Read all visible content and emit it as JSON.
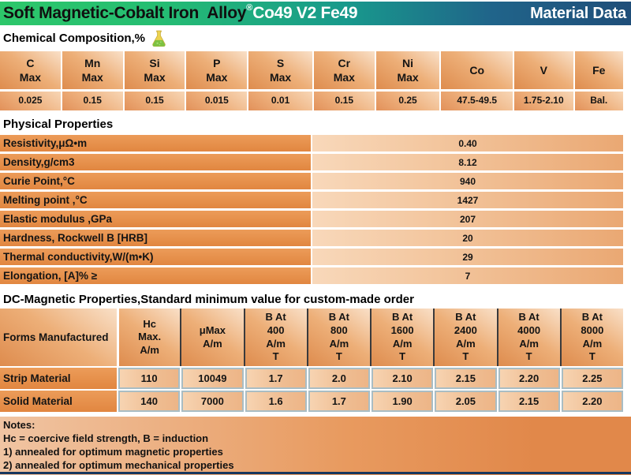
{
  "header": {
    "title_black": "Soft Magnetic-Cobalt Iron  Alloy",
    "registered_mark": "®",
    "title_white": "Co49 V2 Fe49",
    "right_label": "Material Data"
  },
  "colors": {
    "header_green": "#2dc76a",
    "header_teal": "#18998c",
    "header_navy": "#1f4e79",
    "orange_dark": "#de8c4e",
    "orange_light": "#f9e0c8",
    "cell_border_blue": "#a9bdc4",
    "bottom_line_navy": "#17365d"
  },
  "chemical": {
    "heading": "Chemical Composition,%",
    "columns": [
      {
        "lines": [
          "C",
          "Max"
        ]
      },
      {
        "lines": [
          "Mn",
          "Max"
        ]
      },
      {
        "lines": [
          "Si",
          "Max"
        ]
      },
      {
        "lines": [
          "P",
          "Max"
        ]
      },
      {
        "lines": [
          "S",
          "Max"
        ]
      },
      {
        "lines": [
          "Cr",
          "Max"
        ]
      },
      {
        "lines": [
          "Ni",
          "Max"
        ]
      },
      {
        "lines": [
          "Co"
        ]
      },
      {
        "lines": [
          "V"
        ]
      },
      {
        "lines": [
          "Fe"
        ]
      }
    ],
    "values": [
      "0.025",
      "0.15",
      "0.15",
      "0.015",
      "0.01",
      "0.15",
      "0.25",
      "47.5-49.5",
      "1.75-2.10",
      "Bal."
    ]
  },
  "physical": {
    "heading": "Physical Properties",
    "rows": [
      {
        "property": "Resistivity,μΩ•m",
        "value": "0.40"
      },
      {
        "property": "Density,g/cm3",
        "value": "8.12"
      },
      {
        "property": "Curie Point,°C",
        "value": "940"
      },
      {
        "property": "Melting point ,°C",
        "value": "1427"
      },
      {
        "property": "Elastic modulus ,GPa",
        "value": "207"
      },
      {
        "property": "Hardness, Rockwell B [HRB]",
        "value": "20"
      },
      {
        "property": "Thermal conductivity,W/(m•K)",
        "value": "29"
      },
      {
        "property": "Elongation, [A]% ≥",
        "value": "7"
      }
    ]
  },
  "magnetic": {
    "heading": "DC-Magnetic Properties,Standard minimum value for custom-made order",
    "header": [
      {
        "lines": [
          "Forms Manufactured"
        ]
      },
      {
        "lines": [
          "Hc",
          "Max.",
          "A/m"
        ]
      },
      {
        "lines": [
          "μMax",
          "A/m"
        ]
      },
      {
        "lines": [
          "B At",
          "400",
          "A/m",
          "T"
        ]
      },
      {
        "lines": [
          "B At",
          "800",
          "A/m",
          "T"
        ]
      },
      {
        "lines": [
          "B At",
          "1600",
          "A/m",
          "T"
        ]
      },
      {
        "lines": [
          "B At",
          "2400",
          "A/m",
          "T"
        ]
      },
      {
        "lines": [
          "B At",
          "4000",
          "A/m",
          "T"
        ]
      },
      {
        "lines": [
          "B At",
          "8000",
          "A/m",
          "T"
        ]
      }
    ],
    "rows": [
      {
        "label": "Strip Material",
        "values": [
          "110",
          "10049",
          "1.7",
          "2.0",
          "2.10",
          "2.15",
          "2.20",
          "2.25"
        ]
      },
      {
        "label": "Solid Material",
        "values": [
          "140",
          "7000",
          "1.6",
          "1.7",
          "1.90",
          "2.05",
          "2.15",
          "2.20"
        ]
      }
    ]
  },
  "notes": {
    "lines": [
      "Notes:",
      "Hc = coercive field strength, B = induction",
      "1) annealed for optimum magnetic properties",
      "2) annealed for optimum mechanical properties"
    ]
  }
}
